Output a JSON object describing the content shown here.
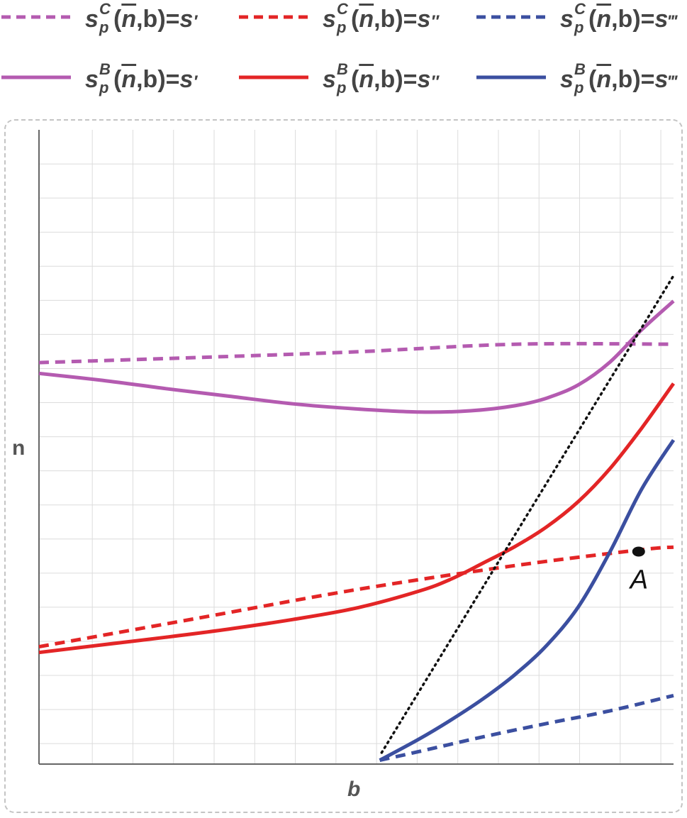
{
  "legend": {
    "items": [
      {
        "sup": "C",
        "sub": "p",
        "arg": "n",
        "rest": ",b)=",
        "rhs": "s",
        "prime": "′",
        "color": "#b45bb0",
        "style": "dashed"
      },
      {
        "sup": "C",
        "sub": "p",
        "arg": "n",
        "rest": ",b)=",
        "rhs": "s",
        "prime": "″",
        "color": "#e32526",
        "style": "dashed"
      },
      {
        "sup": "C",
        "sub": "p",
        "arg": "n",
        "rest": ",b)=",
        "rhs": "s",
        "prime": "‴",
        "color": "#3b4fa0",
        "style": "dashed"
      },
      {
        "sup": "B",
        "sub": "p",
        "arg": "n",
        "rest": ",b)=",
        "rhs": "s",
        "prime": "′",
        "color": "#b45bb0",
        "style": "solid"
      },
      {
        "sup": "B",
        "sub": "p",
        "arg": "n",
        "rest": ",b)=",
        "rhs": "s",
        "prime": "″",
        "color": "#e32526",
        "style": "solid"
      },
      {
        "sup": "B",
        "sub": "p",
        "arg": "n",
        "rest": ",b)=",
        "rhs": "s",
        "prime": "‴",
        "color": "#3b4fa0",
        "style": "solid"
      }
    ],
    "sym": "s",
    "open": "("
  },
  "chart_data": {
    "type": "line",
    "xlabel": "b",
    "ylabel": "n",
    "xlim": [
      0,
      1
    ],
    "ylim": [
      0,
      1
    ],
    "grid": true,
    "series": [
      {
        "id": "c1",
        "color": "#b45bb0",
        "style": "dashed",
        "x": [
          0.0,
          0.25,
          0.5,
          0.75,
          1.0
        ],
        "y": [
          0.633,
          0.641,
          0.65,
          0.662,
          0.662
        ]
      },
      {
        "id": "c2",
        "color": "#e32526",
        "style": "dashed",
        "x": [
          0.0,
          0.25,
          0.5,
          0.75,
          0.95,
          1.0
        ],
        "y": [
          0.185,
          0.23,
          0.275,
          0.313,
          0.338,
          0.342
        ]
      },
      {
        "id": "c3",
        "color": "#3b4fa0",
        "style": "dashed",
        "x": [
          0.537,
          0.6,
          0.7,
          0.8,
          0.9,
          1.0
        ],
        "y": [
          0.006,
          0.02,
          0.043,
          0.064,
          0.084,
          0.108
        ]
      },
      {
        "id": "b1",
        "color": "#b45bb0",
        "style": "solid",
        "x": [
          0.0,
          0.1,
          0.2,
          0.3,
          0.4,
          0.5,
          0.6,
          0.68,
          0.75,
          0.8,
          0.85,
          0.9,
          0.95,
          1.0
        ],
        "y": [
          0.616,
          0.605,
          0.592,
          0.58,
          0.568,
          0.56,
          0.555,
          0.557,
          0.565,
          0.577,
          0.598,
          0.634,
          0.685,
          0.73
        ]
      },
      {
        "id": "b2",
        "color": "#e32526",
        "style": "solid",
        "x": [
          0.0,
          0.1,
          0.2,
          0.3,
          0.4,
          0.5,
          0.6,
          0.65,
          0.7,
          0.75,
          0.8,
          0.85,
          0.9,
          0.95,
          1.0
        ],
        "y": [
          0.176,
          0.188,
          0.2,
          0.213,
          0.228,
          0.246,
          0.273,
          0.292,
          0.317,
          0.343,
          0.374,
          0.414,
          0.466,
          0.53,
          0.6
        ]
      },
      {
        "id": "b3",
        "color": "#3b4fa0",
        "style": "solid",
        "x": [
          0.537,
          0.6,
          0.65,
          0.7,
          0.75,
          0.8,
          0.85,
          0.9,
          0.95,
          1.0
        ],
        "y": [
          0.006,
          0.04,
          0.07,
          0.103,
          0.141,
          0.187,
          0.248,
          0.335,
          0.434,
          0.511
        ]
      },
      {
        "id": "ray",
        "color": "#111111",
        "style": "dotted",
        "x": [
          0.54,
          1.0
        ],
        "y": [
          0.018,
          0.77
        ]
      }
    ],
    "annotations": [
      {
        "label": "A",
        "x": 0.945,
        "y": 0.335
      }
    ]
  }
}
